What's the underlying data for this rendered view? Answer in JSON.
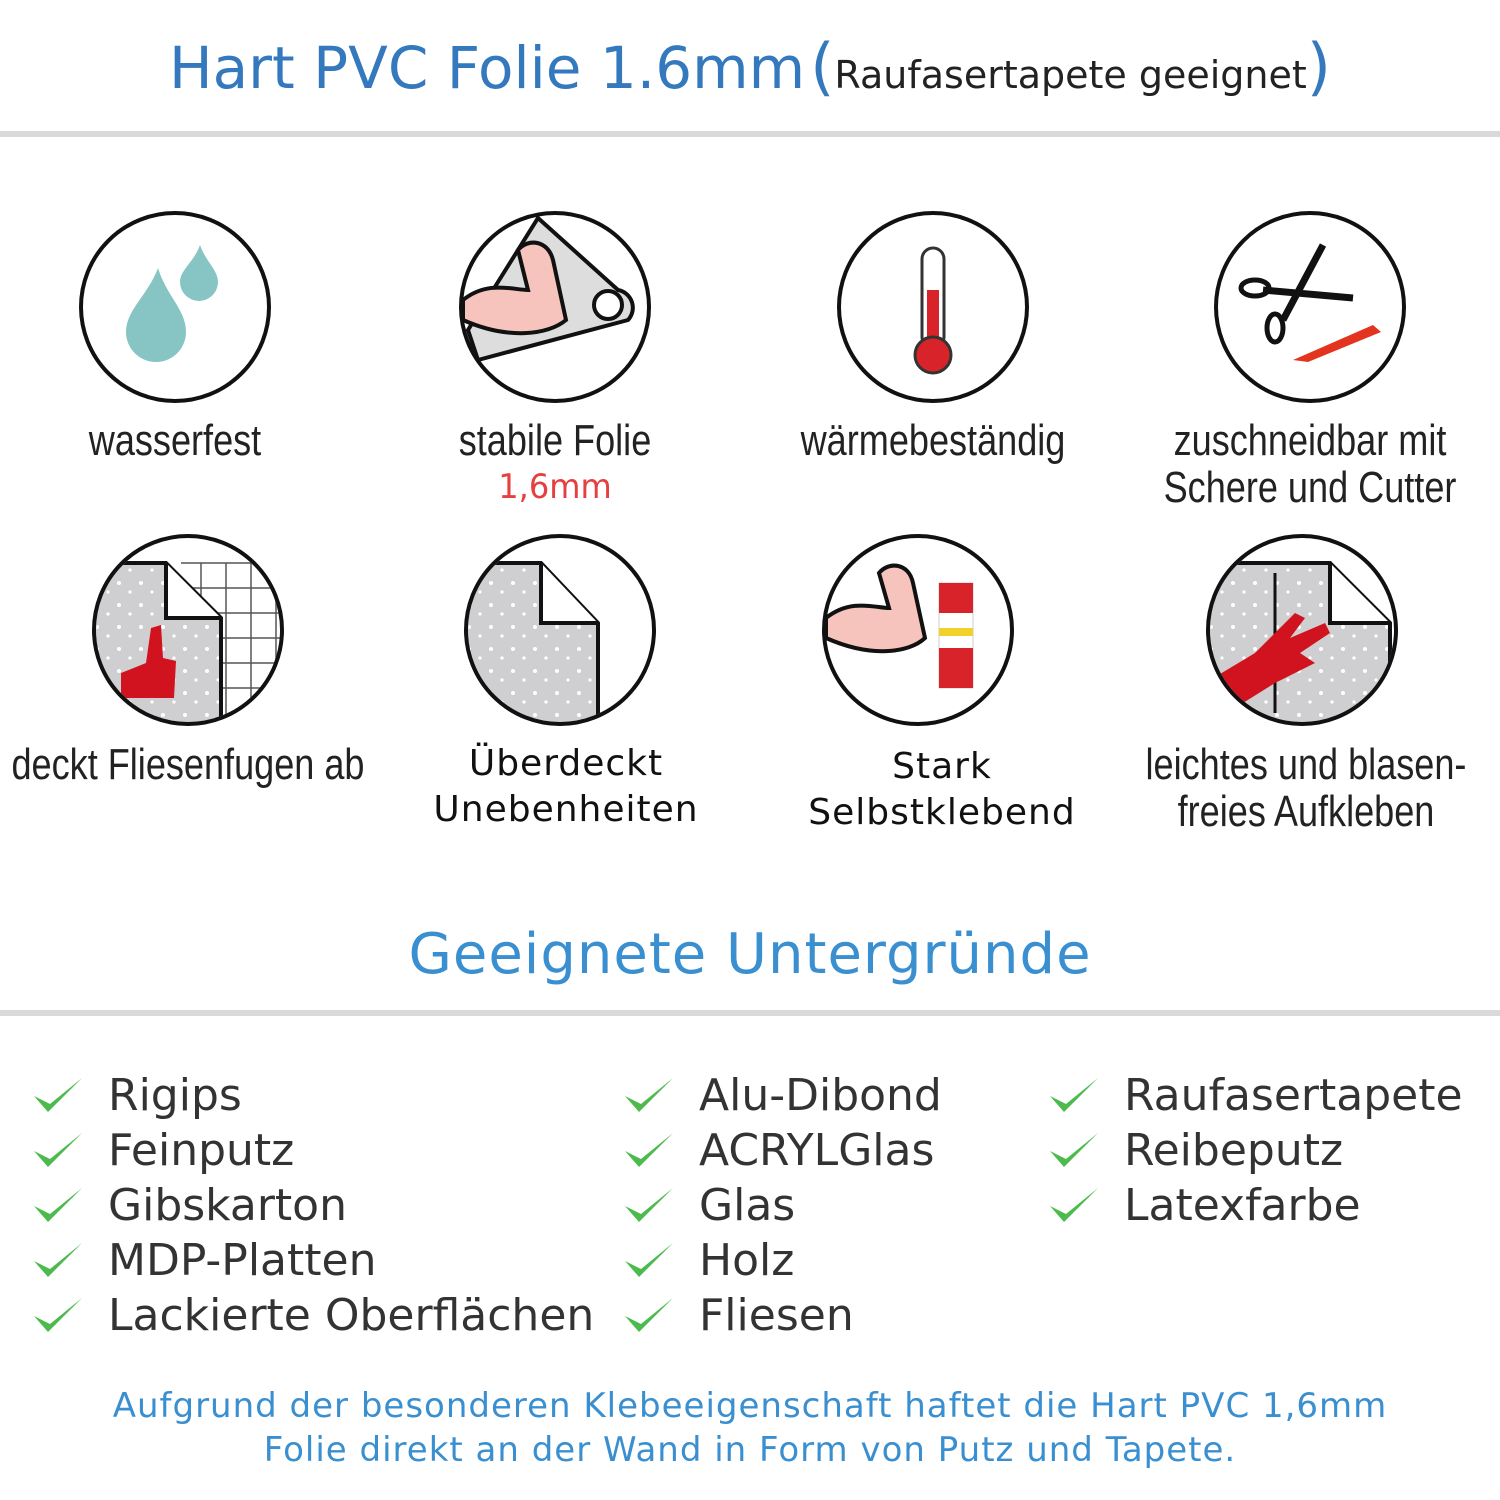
{
  "header": {
    "title": "Hart PVC Folie 1.6mm",
    "subtitle": "Raufasertapete geeignet",
    "accent": "#3478bd"
  },
  "features": [
    {
      "icon": "water-drops-icon",
      "label": "wasserfest"
    },
    {
      "icon": "strong-film-icon",
      "label": "stabile Folie",
      "sublabel": "1,6mm"
    },
    {
      "icon": "thermometer-icon",
      "label": "wärmebeständig"
    },
    {
      "icon": "scissors-cutter-icon",
      "label": "zuschneidbar mit",
      "label2": "Schere und Cutter"
    },
    {
      "icon": "tile-cover-icon",
      "label": "deckt Fliesenfugen ab"
    },
    {
      "icon": "film-corner-icon",
      "label": "Überdeckt",
      "label2": "Unebenheiten"
    },
    {
      "icon": "strong-glue-icon",
      "label": "Stark",
      "label2": "Selbstklebend"
    },
    {
      "icon": "hand-apply-icon",
      "label": "leichtes und blasen-",
      "label2": "freies Aufkleben"
    }
  ],
  "surfaces": {
    "title": "Geeignete Untergründe",
    "check_color": "#4cba4c",
    "col1": [
      "Rigips",
      "Feinputz",
      "Gibskarton",
      "MDP-Platten",
      "Lackierte Oberflächen"
    ],
    "col2": [
      "Alu-Dibond",
      "ACRYLGlas",
      "Glas",
      "Holz",
      "Fliesen"
    ],
    "col3": [
      "Raufasertapete",
      "Reibeputz",
      "Latexfarbe"
    ]
  },
  "footer": {
    "line1": "Aufgrund der besonderen Klebeeigenschaft haftet die Hart PVC 1,6mm",
    "line2": "Folie direkt an der Wand in Form von Putz und Tapete."
  }
}
